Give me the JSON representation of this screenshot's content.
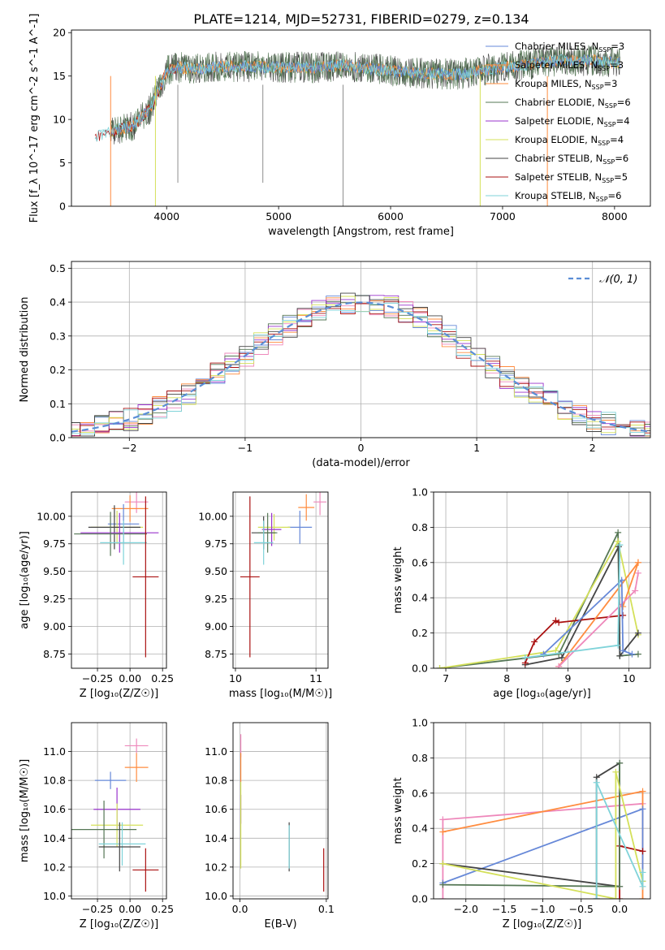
{
  "figure_title": "PLATE=1214, MJD=52731, FIBERID=0279, z=0.134",
  "colors": {
    "chabrier_miles": "#6688d8",
    "salpeter_miles": "#ff8c3f",
    "kroupa_miles": "#ff8c3f",
    "chabrier_elodie": "#557755",
    "salpeter_elodie": "#9933cc",
    "kroupa_elodie": "#d4e05a",
    "chabrier_stelib": "#444444",
    "salpeter_stelib": "#aa1111",
    "kroupa_stelib": "#7fd3d9",
    "gaussian": "#5b8ed6",
    "pink": "#ee88bb",
    "grid": "#b0b0b0"
  },
  "chart_data": [
    {
      "id": "spectrum",
      "type": "line",
      "title": "PLATE=1214, MJD=52731, FIBERID=0279, z=0.134",
      "xlabel": "wavelength [Angstrom, rest frame]",
      "ylabel": "Flux [f_λ 10^-17 erg cm^-2 s^-1 A^-1]",
      "xlim": [
        3150,
        8320
      ],
      "ylim": [
        0,
        20.3
      ],
      "xticks": [
        "4000",
        "5000",
        "6000",
        "7000",
        "8000"
      ],
      "yticks": [
        "0",
        "5",
        "10",
        "15",
        "20"
      ],
      "grid": false,
      "legend_position": "top-right",
      "legend": [
        {
          "label": "Chabrier MILES, N",
          "sub": "SSP",
          "suffix": "=3",
          "color_key": "chabrier_miles"
        },
        {
          "label": "Salpeter MILES, N",
          "sub": "SSP",
          "suffix": "=3",
          "color_key": "salpeter_miles"
        },
        {
          "label": "Kroupa MILES, N",
          "sub": "SSP",
          "suffix": "=3",
          "color_key": "kroupa_miles"
        },
        {
          "label": "Chabrier ELODIE, N",
          "sub": "SSP",
          "suffix": "=6",
          "color_key": "chabrier_elodie"
        },
        {
          "label": "Salpeter ELODIE, N",
          "sub": "SSP",
          "suffix": "=4",
          "color_key": "salpeter_elodie"
        },
        {
          "label": "Kroupa ELODIE, N",
          "sub": "SSP",
          "suffix": "=4",
          "color_key": "kroupa_elodie"
        },
        {
          "label": "Chabrier STELIB, N",
          "sub": "SSP",
          "suffix": "=6",
          "color_key": "chabrier_stelib"
        },
        {
          "label": "Salpeter STELIB, N",
          "sub": "SSP",
          "suffix": "=5",
          "color_key": "salpeter_stelib"
        },
        {
          "label": "Kroupa STELIB, N",
          "sub": "SSP",
          "suffix": "=6",
          "color_key": "kroupa_stelib"
        }
      ],
      "continuum": {
        "x": [
          3350,
          3500,
          3700,
          3850,
          3950,
          4000,
          4100,
          4300,
          4500,
          4800,
          5000,
          5300,
          5600,
          6000,
          6300,
          6600,
          6900,
          7200,
          7500,
          7800,
          8050
        ],
        "y": [
          8.0,
          8.6,
          9.3,
          11.2,
          14.0,
          15.6,
          16.0,
          15.8,
          16.1,
          16.1,
          16.0,
          16.0,
          16.2,
          15.6,
          15.3,
          15.2,
          15.8,
          16.3,
          16.8,
          16.8,
          16.5
        ]
      },
      "dropouts": [
        {
          "x": 3500,
          "color_key": "salpeter_miles"
        },
        {
          "x": 3900,
          "color_key": "kroupa_elodie"
        },
        {
          "x": 6800,
          "color_key": "kroupa_elodie"
        },
        {
          "x": 7400,
          "color_key": "salpeter_miles"
        }
      ]
    },
    {
      "id": "residuals",
      "type": "line",
      "xlabel": "(data-model)/error",
      "ylabel": "Normed distribution",
      "xlim": [
        -2.5,
        2.5
      ],
      "ylim": [
        0,
        0.52
      ],
      "xticks": [
        "−2",
        "−1",
        "0",
        "1",
        "2"
      ],
      "yticks": [
        "0.0",
        "0.1",
        "0.2",
        "0.3",
        "0.4",
        "0.5"
      ],
      "grid": true,
      "legend_position": "top-right",
      "legend": [
        {
          "label": "𝒩(0, 1)",
          "color_key": "gaussian",
          "style": "dashed"
        }
      ],
      "series_color_keys": [
        "chabrier_miles",
        "salpeter_miles",
        "pink",
        "chabrier_elodie",
        "salpeter_elodie",
        "kroupa_elodie",
        "chabrier_stelib",
        "salpeter_stelib",
        "kroupa_stelib"
      ]
    },
    {
      "id": "age_vs_Z",
      "type": "scatter",
      "xlabel": "Z [log₁₀(Z/Z☉)]",
      "ylabel": "age  [log₁₀(age/yr)]",
      "xlim": [
        -0.45,
        0.28
      ],
      "ylim": [
        8.62,
        10.22
      ],
      "xticks": [
        "−0.25",
        "0.00",
        "0.25"
      ],
      "yticks": [
        "8.75",
        "9.00",
        "9.25",
        "9.50",
        "9.75",
        "10.00"
      ],
      "grid": true,
      "points": [
        {
          "x": 0.05,
          "y": 10.13,
          "xerr": 0.09,
          "yerr": 0.1,
          "color_key": "pink"
        },
        {
          "x": 0.0,
          "y": 10.07,
          "xerr": 0.14,
          "yerr": 0.12,
          "color_key": "salpeter_miles"
        },
        {
          "x": -0.05,
          "y": 9.93,
          "xerr": 0.12,
          "yerr": 0.18,
          "color_key": "chabrier_miles"
        },
        {
          "x": -0.1,
          "y": 9.9,
          "xerr": 0.2,
          "yerr": 0.15,
          "color_key": "kroupa_elodie"
        },
        {
          "x": -0.12,
          "y": 9.9,
          "xerr": 0.2,
          "yerr": 0.2,
          "color_key": "chabrier_stelib"
        },
        {
          "x": -0.08,
          "y": 9.85,
          "xerr": 0.3,
          "yerr": 0.18,
          "color_key": "salpeter_elodie"
        },
        {
          "x": -0.15,
          "y": 9.84,
          "xerr": 0.28,
          "yerr": 0.2,
          "color_key": "chabrier_elodie"
        },
        {
          "x": -0.05,
          "y": 9.76,
          "xerr": 0.18,
          "yerr": 0.2,
          "color_key": "kroupa_stelib"
        },
        {
          "x": 0.12,
          "y": 9.45,
          "xerr": 0.1,
          "yerr": 0.73,
          "color_key": "salpeter_stelib"
        }
      ]
    },
    {
      "id": "age_vs_mass",
      "type": "scatter",
      "xlabel": "mass [log₁₀(M/M☉)]",
      "ylabel": "",
      "xlim": [
        9.97,
        11.15
      ],
      "ylim": [
        8.62,
        10.22
      ],
      "xticks": [
        "10",
        "11"
      ],
      "yticks": [
        "8.75",
        "9.00",
        "9.25",
        "9.50",
        "9.75",
        "10.00"
      ],
      "grid": true,
      "points": [
        {
          "x": 11.05,
          "y": 10.13,
          "xerr": 0.08,
          "yerr": 0.12,
          "color_key": "pink"
        },
        {
          "x": 10.88,
          "y": 10.08,
          "xerr": 0.1,
          "yerr": 0.12,
          "color_key": "salpeter_miles"
        },
        {
          "x": 10.8,
          "y": 9.9,
          "xerr": 0.15,
          "yerr": 0.15,
          "color_key": "chabrier_miles"
        },
        {
          "x": 10.48,
          "y": 9.9,
          "xerr": 0.2,
          "yerr": 0.12,
          "color_key": "kroupa_elodie"
        },
        {
          "x": 10.45,
          "y": 9.88,
          "xerr": 0.12,
          "yerr": 0.15,
          "color_key": "salpeter_elodie"
        },
        {
          "x": 10.35,
          "y": 9.85,
          "xerr": 0.15,
          "yerr": 0.15,
          "color_key": "chabrier_stelib"
        },
        {
          "x": 10.4,
          "y": 9.85,
          "xerr": 0.12,
          "yerr": 0.18,
          "color_key": "chabrier_elodie"
        },
        {
          "x": 10.35,
          "y": 9.76,
          "xerr": 0.12,
          "yerr": 0.2,
          "color_key": "kroupa_stelib"
        },
        {
          "x": 10.18,
          "y": 9.45,
          "xerr": 0.12,
          "yerr": 0.73,
          "color_key": "salpeter_stelib"
        }
      ]
    },
    {
      "id": "weight_vs_age",
      "type": "line",
      "xlabel": "age  [log₁₀(age/yr)]",
      "ylabel": "mass weight",
      "xlim": [
        6.8,
        10.35
      ],
      "ylim": [
        0,
        1.0
      ],
      "xticks": [
        "7",
        "8",
        "9",
        "10"
      ],
      "yticks": [
        "0.0",
        "0.2",
        "0.4",
        "0.6",
        "0.8",
        "1.0"
      ],
      "grid": true,
      "series": [
        {
          "color_key": "chabrier_elodie",
          "x": [
            6.9,
            8.85,
            9.82,
            9.85,
            10.15
          ],
          "y": [
            0.0,
            0.08,
            0.77,
            0.07,
            0.08
          ]
        },
        {
          "color_key": "kroupa_elodie",
          "x": [
            6.9,
            8.8,
            9.82,
            10.15
          ],
          "y": [
            0.0,
            0.1,
            0.72,
            0.19
          ]
        },
        {
          "color_key": "chabrier_stelib",
          "x": [
            8.3,
            8.9,
            9.83,
            9.85,
            10.15
          ],
          "y": [
            0.02,
            0.06,
            0.69,
            0.07,
            0.2
          ]
        },
        {
          "color_key": "salpeter_stelib",
          "x": [
            8.3,
            8.45,
            8.8,
            8.85,
            9.9
          ],
          "y": [
            0.03,
            0.15,
            0.27,
            0.26,
            0.3
          ]
        },
        {
          "color_key": "salpeter_miles",
          "x": [
            8.85,
            10.15,
            9.9,
            10.15
          ],
          "y": [
            0.01,
            0.6,
            0.35,
            0.6
          ]
        },
        {
          "color_key": "pink",
          "x": [
            8.85,
            10.1,
            10.15
          ],
          "y": [
            0.01,
            0.44,
            0.54
          ]
        },
        {
          "color_key": "chabrier_miles",
          "x": [
            8.6,
            9.88,
            9.9,
            10.05
          ],
          "y": [
            0.08,
            0.5,
            0.1,
            0.08
          ]
        },
        {
          "color_key": "kroupa_stelib",
          "x": [
            8.3,
            9.82,
            9.85
          ],
          "y": [
            0.06,
            0.13,
            0.7
          ]
        }
      ]
    },
    {
      "id": "mass_vs_Z",
      "type": "scatter",
      "xlabel": "Z [log₁₀(Z/Z☉)]",
      "ylabel": "mass [log₁₀(M/M☉)]",
      "xlim": [
        -0.45,
        0.28
      ],
      "ylim": [
        9.98,
        11.2
      ],
      "xticks": [
        "−0.25",
        "0.00",
        "0.25"
      ],
      "yticks": [
        "10.0",
        "10.2",
        "10.4",
        "10.6",
        "10.8",
        "11.0"
      ],
      "grid": true,
      "points": [
        {
          "x": 0.05,
          "y": 11.04,
          "xerr": 0.09,
          "yerr": 0.05,
          "color_key": "pink"
        },
        {
          "x": 0.05,
          "y": 10.89,
          "xerr": 0.09,
          "yerr": 0.1,
          "color_key": "salpeter_miles"
        },
        {
          "x": -0.15,
          "y": 10.8,
          "xerr": 0.12,
          "yerr": 0.06,
          "color_key": "chabrier_miles"
        },
        {
          "x": -0.1,
          "y": 10.6,
          "xerr": 0.18,
          "yerr": 0.15,
          "color_key": "salpeter_elodie"
        },
        {
          "x": -0.1,
          "y": 10.49,
          "xerr": 0.2,
          "yerr": 0.15,
          "color_key": "kroupa_elodie"
        },
        {
          "x": -0.2,
          "y": 10.46,
          "xerr": 0.25,
          "yerr": 0.2,
          "color_key": "chabrier_elodie"
        },
        {
          "x": -0.06,
          "y": 10.36,
          "xerr": 0.18,
          "yerr": 0.15,
          "color_key": "kroupa_stelib"
        },
        {
          "x": -0.08,
          "y": 10.34,
          "xerr": 0.16,
          "yerr": 0.17,
          "color_key": "chabrier_stelib"
        },
        {
          "x": 0.12,
          "y": 10.18,
          "xerr": 0.1,
          "yerr": 0.15,
          "color_key": "salpeter_stelib"
        }
      ]
    },
    {
      "id": "mass_vs_ebv",
      "type": "scatter",
      "xlabel": "E(B-V)",
      "ylabel": "",
      "xlim": [
        -0.008,
        0.102
      ],
      "ylim": [
        9.98,
        11.2
      ],
      "xticks": [
        "0.0",
        "0.1"
      ],
      "yticks": [
        "10.0",
        "10.2",
        "10.4",
        "10.6",
        "10.8",
        "11.0"
      ],
      "grid": true,
      "points": [
        {
          "x": 0.001,
          "y": 11.04,
          "xerr": 0,
          "yerr": 0.08,
          "color_key": "pink"
        },
        {
          "x": 0.001,
          "y": 10.89,
          "xerr": 0,
          "yerr": 0.1,
          "color_key": "salpeter_miles"
        },
        {
          "x": 0.001,
          "y": 10.6,
          "xerr": 0,
          "yerr": 0.1,
          "color_key": "salpeter_elodie"
        },
        {
          "x": 0.001,
          "y": 10.49,
          "xerr": 0,
          "yerr": 0.3,
          "color_key": "kroupa_elodie"
        },
        {
          "x": 0.057,
          "y": 10.34,
          "xerr": 0,
          "yerr": 0.17,
          "color_key": "chabrier_stelib"
        },
        {
          "x": 0.057,
          "y": 10.34,
          "xerr": 0,
          "yerr": 0.15,
          "color_key": "kroupa_stelib"
        },
        {
          "x": 0.097,
          "y": 10.18,
          "xerr": 0,
          "yerr": 0.15,
          "color_key": "salpeter_stelib"
        }
      ]
    },
    {
      "id": "weight_vs_Z",
      "type": "line",
      "xlabel": "Z [log₁₀(Z/Z☉)]",
      "ylabel": "mass weight",
      "xlim": [
        -2.42,
        0.4
      ],
      "ylim": [
        0,
        1.0
      ],
      "xticks": [
        "−2.0",
        "−1.5",
        "−1.0",
        "−0.5",
        "0.0"
      ],
      "yticks": [
        "0.0",
        "0.2",
        "0.4",
        "0.6",
        "0.8",
        "1.0"
      ],
      "grid": true,
      "series": [
        {
          "color_key": "pink",
          "x": [
            -2.3,
            -2.3,
            0.3
          ],
          "y": [
            0.0,
            0.45,
            0.54
          ]
        },
        {
          "color_key": "salpeter_miles",
          "x": [
            -2.3,
            0.3,
            0.3
          ],
          "y": [
            0.38,
            0.61,
            0.0
          ]
        },
        {
          "color_key": "chabrier_miles",
          "x": [
            -2.3,
            0.3,
            0.3
          ],
          "y": [
            0.09,
            0.51,
            0.1
          ]
        },
        {
          "color_key": "chabrier_stelib",
          "x": [
            -2.3,
            0.0,
            0.0,
            -0.3,
            -0.3
          ],
          "y": [
            0.2,
            0.07,
            0.77,
            0.69,
            0.0
          ]
        },
        {
          "color_key": "salpeter_stelib",
          "x": [
            0.0,
            0.0,
            0.3
          ],
          "y": [
            0.0,
            0.3,
            0.27
          ]
        },
        {
          "color_key": "chabrier_elodie",
          "x": [
            -2.3,
            0.0,
            0.0
          ],
          "y": [
            0.08,
            0.07,
            0.77
          ]
        },
        {
          "color_key": "kroupa_elodie",
          "x": [
            -2.3,
            -0.05,
            -0.05,
            0.3
          ],
          "y": [
            0.2,
            0.0,
            0.72,
            0.1
          ]
        },
        {
          "color_key": "kroupa_stelib",
          "x": [
            -0.3,
            -0.3,
            0.3,
            0.3
          ],
          "y": [
            0.0,
            0.66,
            0.07,
            0.15
          ]
        }
      ]
    }
  ]
}
